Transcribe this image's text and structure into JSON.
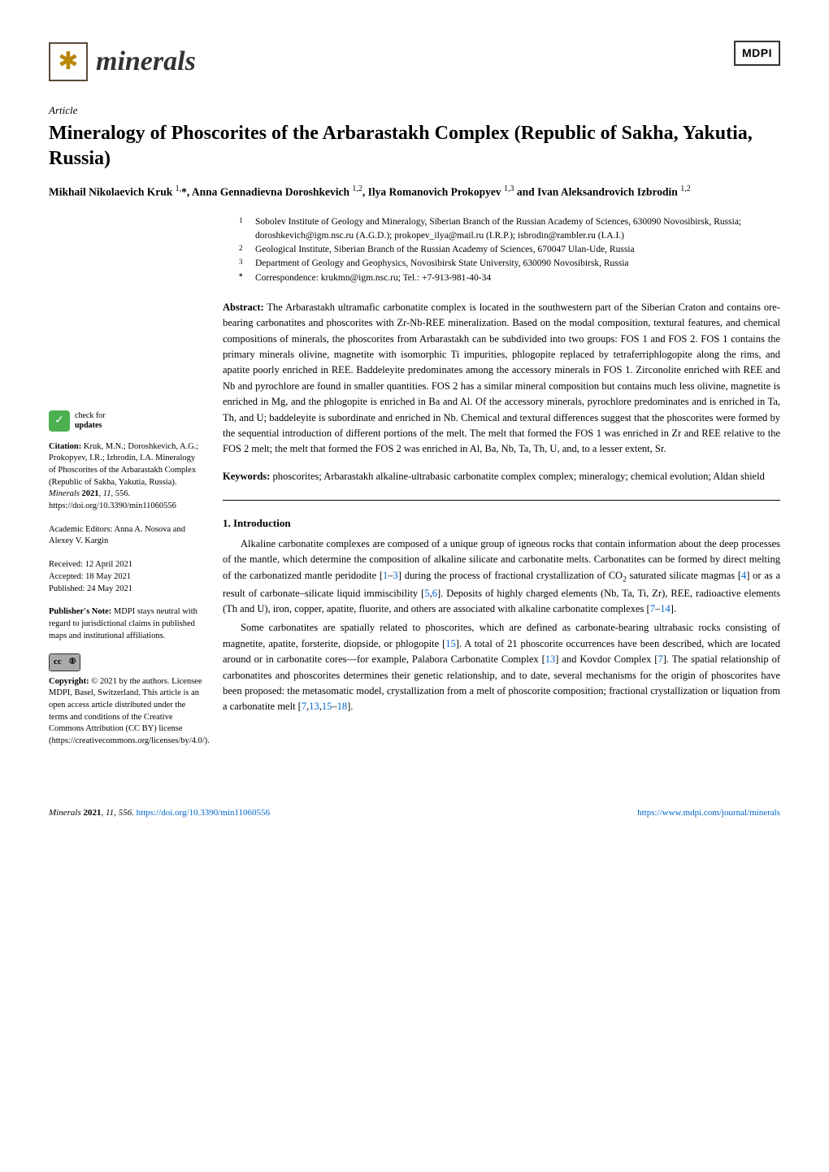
{
  "header": {
    "journal_name": "minerals",
    "publisher_logo": "MDPI"
  },
  "article": {
    "type_label": "Article",
    "title": "Mineralogy of Phoscorites of the Arbarastakh Complex (Republic of Sakha, Yakutia, Russia)",
    "authors_html": "Mikhail Nikolaevich Kruk <sup>1,</sup>*, Anna Gennadievna Doroshkevich <sup>1,2</sup>, Ilya Romanovich Prokopyev <sup>1,3</sup> and Ivan Aleksandrovich Izbrodin <sup>1,2</sup>"
  },
  "affiliations": [
    {
      "num": "1",
      "text": "Sobolev Institute of Geology and Mineralogy, Siberian Branch of the Russian Academy of Sciences, 630090 Novosibirsk, Russia; doroshkevich@igm.nsc.ru (A.G.D.); prokopev_ilya@mail.ru (I.R.P.); isbrodin@rambler.ru (I.A.I.)"
    },
    {
      "num": "2",
      "text": "Geological Institute, Siberian Branch of the Russian Academy of Sciences, 670047 Ulan-Ude, Russia"
    },
    {
      "num": "3",
      "text": "Department of Geology and Geophysics, Novosibirsk State University, 630090 Novosibirsk, Russia"
    },
    {
      "num": "*",
      "text": "Correspondence: krukmn@igm.nsc.ru; Tel.: +7-913-981-40-34"
    }
  ],
  "abstract": {
    "label": "Abstract:",
    "text": "The Arbarastakh ultramafic carbonatite complex is located in the southwestern part of the Siberian Craton and contains ore-bearing carbonatites and phoscorites with Zr-Nb-REE mineralization. Based on the modal composition, textural features, and chemical compositions of minerals, the phoscorites from Arbarastakh can be subdivided into two groups: FOS 1 and FOS 2. FOS 1 contains the primary minerals olivine, magnetite with isomorphic Ti impurities, phlogopite replaced by tetraferriphlogopite along the rims, and apatite poorly enriched in REE. Baddeleyite predominates among the accessory minerals in FOS 1. Zirconolite enriched with REE and Nb and pyrochlore are found in smaller quantities. FOS 2 has a similar mineral composition but contains much less olivine, magnetite is enriched in Mg, and the phlogopite is enriched in Ba and Al. Of the accessory minerals, pyrochlore predominates and is enriched in Ta, Th, and U; baddeleyite is subordinate and enriched in Nb. Chemical and textural differences suggest that the phoscorites were formed by the sequential introduction of different portions of the melt. The melt that formed the FOS 1 was enriched in Zr and REE relative to the FOS 2 melt; the melt that formed the FOS 2 was enriched in Al, Ba, Nb, Ta, Th, U, and, to a lesser extent, Sr."
  },
  "keywords": {
    "label": "Keywords:",
    "text": "phoscorites; Arbarastakh alkaline-ultrabasic carbonatite complex complex; mineralogy; chemical evolution; Aldan shield"
  },
  "section1": {
    "heading": "1. Introduction",
    "para1_pre": "Alkaline carbonatite complexes are composed of a unique group of igneous rocks that contain information about the deep processes of the mantle, which determine the composition of alkaline silicate and carbonatite melts. Carbonatites can be formed by direct melting of the carbonatized mantle peridodite [",
    "ref1": "1",
    "dash1": "–",
    "ref3": "3",
    "para1_mid1": "] during the process of fractional crystallization of CO",
    "sub2": "2",
    "para1_mid2": " saturated silicate magmas [",
    "ref4": "4",
    "para1_mid3": "] or as a result of carbonate–silicate liquid immiscibility [",
    "ref5": "5",
    "comma1": ",",
    "ref6": "6",
    "para1_mid4": "]. Deposits of highly charged elements (Nb, Ta, Ti, Zr), REE, radioactive elements (Th and U), iron, copper, apatite, fluorite, and others are associated with alkaline carbonatite complexes [",
    "ref7": "7",
    "dash2": "–",
    "ref14": "14",
    "para1_end": "].",
    "para2_pre": "Some carbonatites are spatially related to phoscorites, which are defined as carbonate-bearing ultrabasic rocks consisting of magnetite, apatite, forsterite, diopside, or phlogopite [",
    "ref15": "15",
    "para2_mid1": "]. A total of 21 phoscorite occurrences have been described, which are located around or in carbonatite cores—for example, Palabora Carbonatite Complex [",
    "ref13": "13",
    "para2_mid2": "] and Kovdor Complex [",
    "ref7b": "7",
    "para2_mid3": "]. The spatial relationship of carbonatites and phoscorites determines their genetic relationship, and to date, several mechanisms for the origin of phoscorites have been proposed: the metasomatic model, crystallization from a melt of phoscorite composition; fractional crystallization or liquation from a carbonatite melt [",
    "ref7c": "7",
    "comma2": ",",
    "ref13b": "13",
    "comma3": ",",
    "ref15b": "15",
    "dash3": "–",
    "ref18": "18",
    "para2_end": "]."
  },
  "sidebar": {
    "check_updates_line1": "check for",
    "check_updates_line2": "updates",
    "citation_label": "Citation:",
    "citation_text": " Kruk, M.N.; Doroshkevich, A.G.; Prokopyev, I.R.; Izbrodin, I.A. Mineralogy of Phoscorites of the Arbarastakh Complex (Republic of Sakha, Yakutia, Russia). ",
    "citation_journal": "Minerals",
    "citation_year": " 2021",
    "citation_vol": ", 11",
    "citation_page": ", 556. ",
    "citation_doi": "https://doi.org/10.3390/min11060556",
    "editors_label": "Academic Editors: ",
    "editors_text": "Anna A. Nosova and Alexey V. Kargin",
    "received": "Received: 12 April 2021",
    "accepted": "Accepted: 18 May 2021",
    "published": "Published: 24 May 2021",
    "pubnote_label": "Publisher's Note:",
    "pubnote_text": " MDPI stays neutral with regard to jurisdictional claims in published maps and institutional affiliations.",
    "cc_label": "cc",
    "by_label": "🅯",
    "copyright_label": "Copyright:",
    "copyright_text": " © 2021 by the authors. Licensee MDPI, Basel, Switzerland. This article is an open access article distributed under the terms and conditions of the Creative Commons Attribution (CC BY) license (https://creativecommons.org/licenses/by/4.0/)."
  },
  "footer": {
    "left_journal": "Minerals ",
    "left_year": "2021",
    "left_rest": ", 11, 556. ",
    "left_doi": "https://doi.org/10.3390/min11060556",
    "right": "https://www.mdpi.com/journal/minerals"
  }
}
